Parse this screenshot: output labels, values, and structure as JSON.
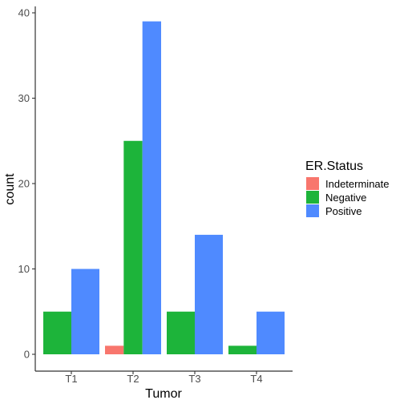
{
  "chart_data": {
    "type": "bar",
    "categories": [
      "T1",
      "T2",
      "T3",
      "T4"
    ],
    "series": [
      {
        "name": "Indeterminate",
        "color": "#F8766D",
        "values": [
          0,
          1,
          0,
          0
        ]
      },
      {
        "name": "Negative",
        "color": "#1DB43A",
        "values": [
          5,
          25,
          5,
          1
        ]
      },
      {
        "name": "Positive",
        "color": "#4F8AFF",
        "values": [
          10,
          39,
          14,
          5
        ]
      }
    ],
    "xlabel": "Tumor",
    "ylabel": "count",
    "ylim": [
      0,
      40
    ],
    "yticks": [
      0,
      10,
      20,
      30,
      40
    ],
    "grid": false,
    "legend": {
      "title": "ER.Status",
      "position": "right"
    }
  }
}
